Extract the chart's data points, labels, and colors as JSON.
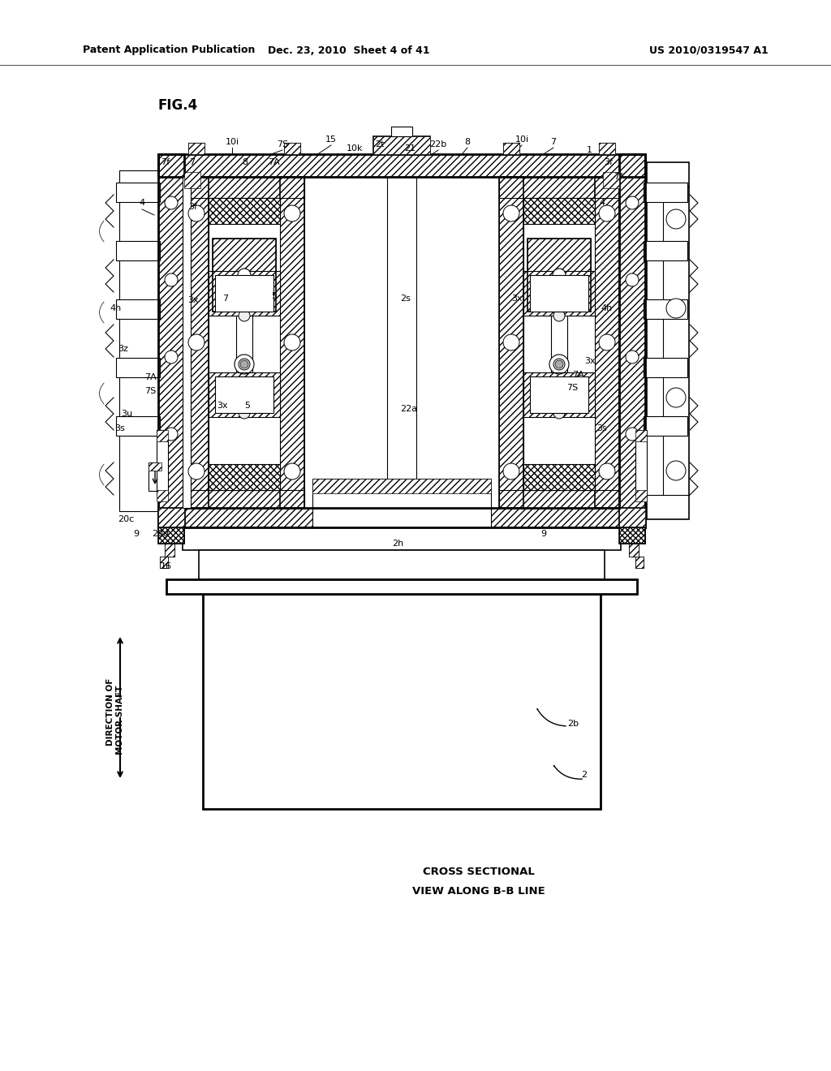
{
  "bg_color": "#ffffff",
  "line_color": "#000000",
  "header_text_left": "Patent Application Publication",
  "header_text_mid": "Dec. 23, 2010  Sheet 4 of 41",
  "header_text_right": "US 2010/0319547 A1",
  "fig_label": "FIG.4",
  "caption1": "CROSS SECTIONAL",
  "caption2": "VIEW ALONG B-B LINE",
  "dir_label1": "DIRECTION OF",
  "dir_label2": "MOTOR SHAFT"
}
